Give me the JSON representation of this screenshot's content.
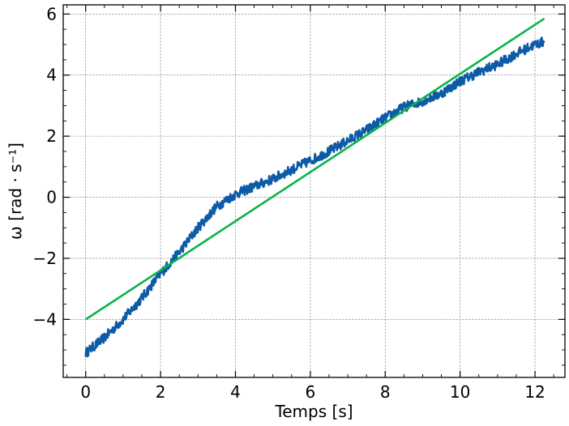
{
  "chart_data": {
    "type": "line",
    "xlabel": "Temps [s]",
    "ylabel": "ω [rad · s⁻¹]",
    "xlim": [
      -0.6,
      12.8
    ],
    "ylim": [
      -5.9,
      6.3
    ],
    "xticks": [
      0,
      2,
      4,
      6,
      8,
      10,
      12
    ],
    "yticks": [
      -4,
      -2,
      0,
      2,
      4,
      6
    ],
    "xtick_labels": [
      "0",
      "2",
      "4",
      "6",
      "8",
      "10",
      "12"
    ],
    "ytick_labels": [
      "−4",
      "−2",
      "0",
      "2",
      "4",
      "6"
    ],
    "grid": true,
    "series": [
      {
        "name": "",
        "color": "#0d5aa7",
        "noisy": true,
        "x": [
          0.0,
          0.5,
          1.0,
          1.5,
          2.0,
          2.5,
          3.0,
          3.5,
          4.0,
          4.5,
          5.0,
          5.5,
          6.0,
          6.5,
          7.0,
          7.5,
          8.0,
          8.5,
          9.0,
          9.5,
          10.0,
          10.5,
          11.0,
          11.5,
          12.0,
          12.25
        ],
        "y": [
          -5.1,
          -4.6,
          -4.0,
          -3.3,
          -2.5,
          -1.8,
          -1.0,
          -0.3,
          0.1,
          0.35,
          0.6,
          0.9,
          1.2,
          1.5,
          1.85,
          2.2,
          2.6,
          2.95,
          3.15,
          3.4,
          3.8,
          4.1,
          4.35,
          4.7,
          5.0,
          5.1
        ]
      },
      {
        "name": "",
        "color": "#0ab34a",
        "noisy": false,
        "x": [
          0.0,
          12.25
        ],
        "y": [
          -4.0,
          5.85
        ]
      }
    ]
  }
}
